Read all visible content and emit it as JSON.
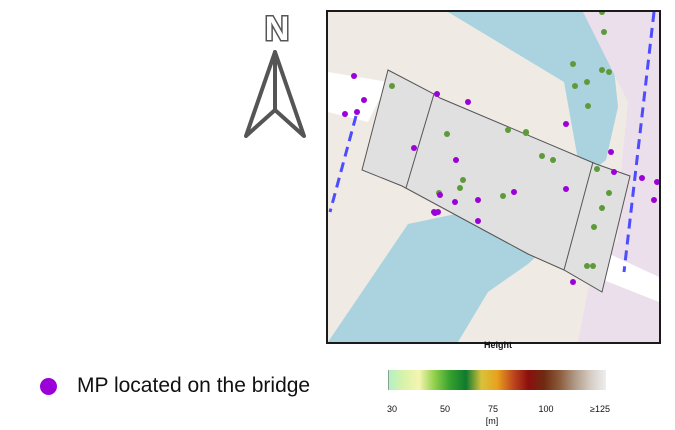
{
  "north_arrow": {
    "letter": "N"
  },
  "map": {
    "background_color": "#efebe4",
    "river_color": "#aad3df",
    "purple_zone_color": "#ebdfeb",
    "road_color": "#ffffff",
    "bridge_fill": "#e0e0e0",
    "bridge_stroke": "#555555",
    "path_color": "#4d4dff"
  },
  "legend": {
    "marker_color": "#9b00d8",
    "label": "MP located on the bridge",
    "other_marker_color": "#5d9a3a"
  },
  "colorbar": {
    "title": "Height",
    "unit": "[m]",
    "ticks": [
      "30",
      "50",
      "75",
      "100",
      "≥125"
    ],
    "colors": [
      "#b3f0c8",
      "#d8f2a8",
      "#f5f5b0",
      "#8fd04a",
      "#35a02e",
      "#0f7a2e",
      "#d8c23a",
      "#e8a21e",
      "#c24a1e",
      "#8c0f0f",
      "#6e2a10",
      "#8a5a3a",
      "#b09a86",
      "#d4ccc4",
      "#eeeeee"
    ]
  }
}
